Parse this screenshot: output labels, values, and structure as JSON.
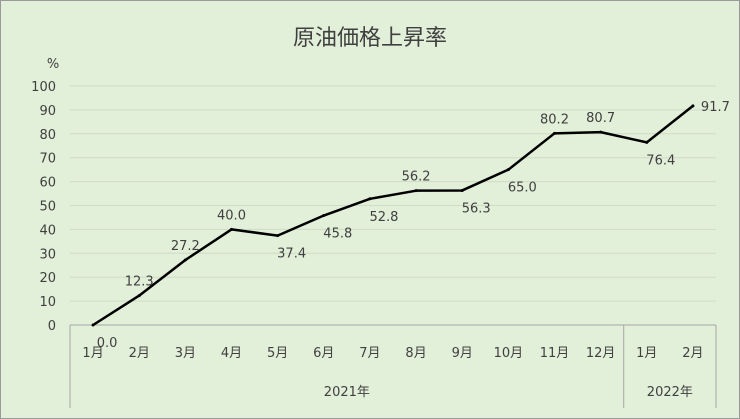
{
  "chart_data": {
    "type": "line",
    "title": "原油価格上昇率",
    "ylabel": "%",
    "ylim": [
      0,
      100
    ],
    "yticks": [
      "0",
      "10",
      "20",
      "30",
      "40",
      "50",
      "60",
      "70",
      "80",
      "90",
      "100"
    ],
    "categories": [
      "1月",
      "2月",
      "3月",
      "4月",
      "5月",
      "6月",
      "7月",
      "8月",
      "9月",
      "10月",
      "11月",
      "12月",
      "1月",
      "2月"
    ],
    "groups": [
      {
        "label": "2021年",
        "count": 12
      },
      {
        "label": "2022年",
        "count": 2
      }
    ],
    "values": [
      0.0,
      12.3,
      27.2,
      40.0,
      37.4,
      45.8,
      52.8,
      56.2,
      56.3,
      65.0,
      80.2,
      80.7,
      76.4,
      91.7
    ],
    "data_labels": [
      "0.0",
      "12.3",
      "27.2",
      "40.0",
      "37.4",
      "45.8",
      "52.8",
      "56.2",
      "56.3",
      "65.0",
      "80.2",
      "80.7",
      "76.4",
      "91.7"
    ],
    "grid": true,
    "line_color": "#000000",
    "background_color": "#e2efd9"
  }
}
